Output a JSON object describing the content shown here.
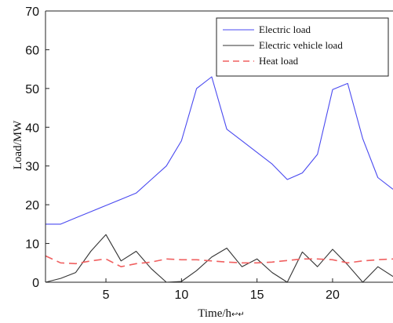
{
  "chart_data": {
    "type": "line",
    "title": "",
    "xlabel": "Time/h",
    "ylabel": "Load/MW",
    "xlim": [
      1,
      24
    ],
    "ylim": [
      0,
      70
    ],
    "xticks": [
      5,
      10,
      15,
      20
    ],
    "yticks": [
      0,
      10,
      20,
      30,
      40,
      50,
      60,
      70
    ],
    "grid": false,
    "legend_position": "top-right",
    "x": [
      1,
      2,
      3,
      4,
      5,
      6,
      7,
      8,
      9,
      10,
      11,
      12,
      13,
      14,
      15,
      16,
      17,
      18,
      19,
      20,
      21,
      22,
      23,
      24
    ],
    "series": [
      {
        "name": "Electric load",
        "color": "#4a4af0",
        "dash": "solid",
        "values": [
          15,
          15,
          16.6,
          18.2,
          19.8,
          21.4,
          23,
          26.5,
          30,
          36.5,
          50,
          53,
          39.5,
          36.5,
          33.5,
          30.5,
          26.5,
          28.2,
          33,
          49.7,
          51.3,
          37,
          27,
          24
        ]
      },
      {
        "name": "Electric vehicle load",
        "color": "#333333",
        "dash": "solid",
        "values": [
          0,
          1,
          2.5,
          8,
          12.3,
          5.5,
          8,
          3.5,
          0,
          0.2,
          3,
          6.5,
          8.8,
          4,
          6,
          2.5,
          0,
          7.8,
          4,
          8.5,
          4.5,
          0,
          4,
          1.5
        ]
      },
      {
        "name": "Heat load",
        "color": "#f06060",
        "dash": "dashed",
        "values": [
          6.8,
          5,
          4.8,
          5.5,
          6,
          4,
          4.8,
          5.2,
          6,
          5.8,
          5.8,
          5.5,
          5.2,
          5,
          5,
          5.2,
          5.6,
          6,
          6,
          5.8,
          5,
          5.5,
          5.8,
          6
        ]
      }
    ]
  },
  "axis_unit_glyph": "↩↵"
}
